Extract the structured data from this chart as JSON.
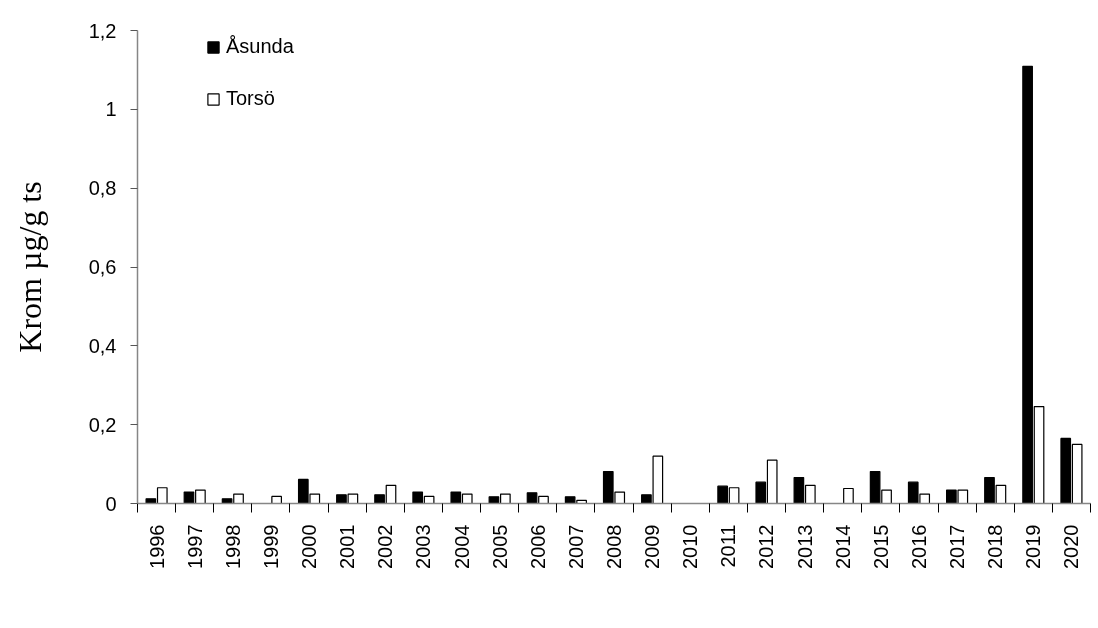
{
  "chart_data": {
    "type": "bar",
    "ylabel": "Krom µg/g ts",
    "categories": [
      "1996",
      "1997",
      "1998",
      "1999",
      "2000",
      "2001",
      "2002",
      "2003",
      "2004",
      "2005",
      "2006",
      "2007",
      "2008",
      "2009",
      "2010",
      "2011",
      "2012",
      "2013",
      "2014",
      "2015",
      "2016",
      "2017",
      "2018",
      "2019",
      "2020"
    ],
    "series": [
      {
        "name": "Åsunda",
        "color": "#000000",
        "values": [
          0.012,
          0.029,
          0.012,
          null,
          0.061,
          0.022,
          0.022,
          0.029,
          0.029,
          0.017,
          0.027,
          0.017,
          0.081,
          0.022,
          null,
          0.044,
          0.054,
          0.066,
          null,
          0.081,
          0.054,
          0.034,
          0.066,
          1.109,
          0.165
        ]
      },
      {
        "name": "Torsö",
        "color": "#ffffff",
        "values": [
          0.04,
          0.034,
          0.024,
          0.018,
          0.024,
          0.024,
          0.046,
          0.018,
          0.024,
          0.024,
          0.018,
          0.008,
          0.029,
          0.12,
          null,
          0.04,
          0.11,
          0.046,
          0.038,
          0.034,
          0.024,
          0.034,
          0.046,
          0.246,
          0.15
        ]
      }
    ],
    "ylim": [
      0,
      1.2
    ],
    "yticks": [
      0,
      {
        "value": 0.2,
        "label": "0,2"
      },
      {
        "value": 0.4,
        "label": "0,4"
      },
      {
        "value": 0.6,
        "label": "0,6"
      },
      {
        "value": 0.8,
        "label": "0,8"
      },
      1,
      {
        "value": 1.2,
        "label": "1,2"
      }
    ],
    "grid": false,
    "legend": "top left"
  }
}
